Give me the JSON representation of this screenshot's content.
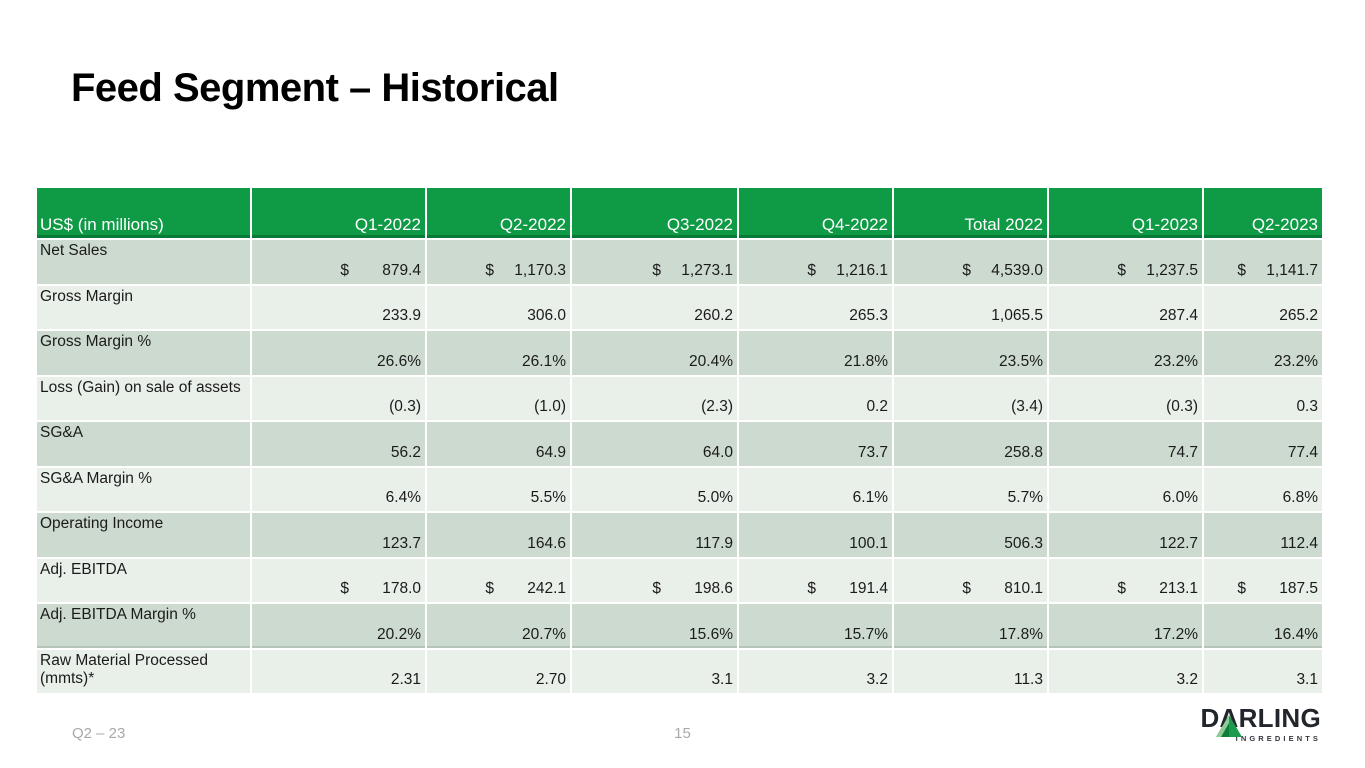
{
  "slide": {
    "title": "Feed Segment – Historical",
    "footer": {
      "quarter_label": "Q2 – 23",
      "page_number": "15"
    },
    "logo": {
      "wordmark": "DARLING",
      "subtext": "INGREDIENTS"
    }
  },
  "table": {
    "columns": [
      "US$ (in millions)",
      "Q1-2022",
      "Q2-2022",
      "Q3-2022",
      "Q4-2022",
      "Total 2022",
      "Q1-2023",
      "Q2-2023"
    ],
    "rows": [
      {
        "label": "Net Sales",
        "currency": true,
        "values": [
          "879.4",
          "1,170.3",
          "1,273.1",
          "1,216.1",
          "4,539.0",
          "1,237.5",
          "1,141.7"
        ]
      },
      {
        "label": "Gross Margin",
        "currency": false,
        "values": [
          "233.9",
          "306.0",
          "260.2",
          "265.3",
          "1,065.5",
          "287.4",
          "265.2"
        ]
      },
      {
        "label": "Gross Margin %",
        "currency": false,
        "values": [
          "26.6%",
          "26.1%",
          "20.4%",
          "21.8%",
          "23.5%",
          "23.2%",
          "23.2%"
        ]
      },
      {
        "label": "Loss (Gain) on sale of assets",
        "currency": false,
        "values": [
          "(0.3)",
          "(1.0)",
          "(2.3)",
          "0.2",
          "(3.4)",
          "(0.3)",
          "0.3"
        ]
      },
      {
        "label": "SG&A",
        "currency": false,
        "values": [
          "56.2",
          "64.9",
          "64.0",
          "73.7",
          "258.8",
          "74.7",
          "77.4"
        ]
      },
      {
        "label": "SG&A Margin %",
        "currency": false,
        "values": [
          "6.4%",
          "5.5%",
          "5.0%",
          "6.1%",
          "5.7%",
          "6.0%",
          "6.8%"
        ]
      },
      {
        "label": "Operating Income",
        "currency": false,
        "values": [
          "123.7",
          "164.6",
          "117.9",
          "100.1",
          "506.3",
          "122.7",
          "112.4"
        ]
      },
      {
        "label": "Adj. EBITDA",
        "currency": true,
        "values": [
          "178.0",
          "242.1",
          "198.6",
          "191.4",
          "810.1",
          "213.1",
          "187.5"
        ]
      },
      {
        "label": "Adj. EBITDA Margin %",
        "currency": false,
        "values": [
          "20.2%",
          "20.7%",
          "15.6%",
          "15.7%",
          "17.8%",
          "17.2%",
          "16.4%"
        ]
      },
      {
        "label": "Raw Material Processed (mmts)*",
        "currency": false,
        "values": [
          "2.31",
          "2.70",
          "3.1",
          "3.2",
          "11.3",
          "3.2",
          "3.1"
        ]
      }
    ],
    "currency_symbol": "$"
  },
  "colors": {
    "header_green": "#0f9a46",
    "header_green_dark": "#077a38",
    "row_sage": "#ccdacf",
    "row_light": "#e9efe9",
    "footer_gray": "#a9a9a9",
    "logo_dark": "#22262c",
    "logo_green": "#1d9b4e",
    "logo_green_light": "#8fca97"
  }
}
